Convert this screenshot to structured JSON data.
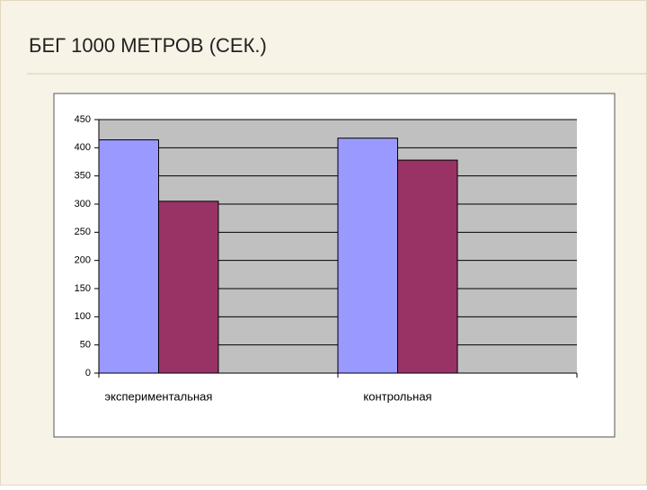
{
  "chart_data": {
    "type": "bar",
    "title": "БЕГ 1000 МЕТРОВ (СЕК.)",
    "categories": [
      "экспериментальная",
      "контрольная"
    ],
    "series": [
      {
        "color": "#9999ff",
        "values": [
          414,
          417
        ]
      },
      {
        "color": "#993366",
        "values": [
          305,
          378
        ]
      }
    ],
    "ylim": [
      0,
      450
    ],
    "yticks": [
      0,
      50,
      100,
      150,
      200,
      250,
      300,
      350,
      400,
      450
    ],
    "grid": true
  }
}
